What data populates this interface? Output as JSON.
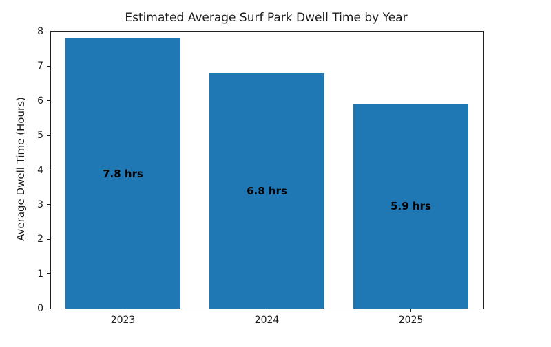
{
  "chart_data": {
    "type": "bar",
    "title": "Estimated Average Surf Park Dwell Time by Year",
    "xlabel": "",
    "ylabel": "Average Dwell Time (Hours)",
    "categories": [
      "2023",
      "2024",
      "2025"
    ],
    "values": [
      7.8,
      6.8,
      5.9
    ],
    "bar_labels": [
      "7.8 hrs",
      "6.8 hrs",
      "5.9 hrs"
    ],
    "ylim": [
      0,
      8
    ],
    "yticks": [
      0,
      1,
      2,
      3,
      4,
      5,
      6,
      7,
      8
    ],
    "grid": false,
    "legend": "none",
    "colors": {
      "bar": "#1f77b4",
      "bar_label": "#000000",
      "axis": "#1f1f1f",
      "text": "#1a1a1a",
      "background": "#ffffff"
    }
  }
}
